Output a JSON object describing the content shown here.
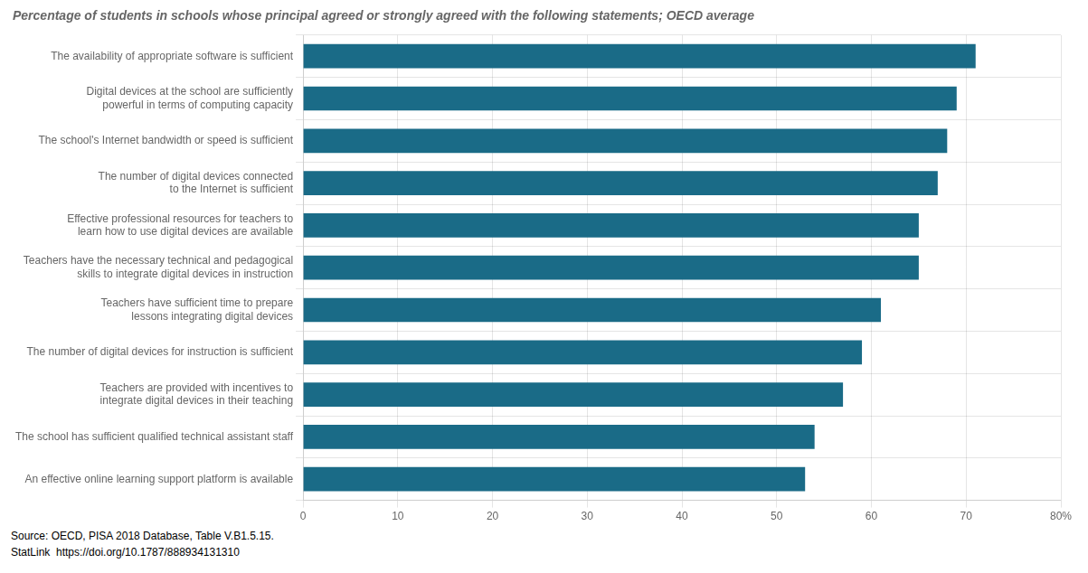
{
  "chart_data": {
    "type": "bar",
    "orientation": "horizontal",
    "title": "Percentage of students in schools whose principal agreed or strongly agreed with the following statements; OECD average",
    "categories": [
      "An effective online learning support platform is available",
      "The school has sufficient qualified technical assistant staff",
      "Teachers are provided with incentives to\nintegrate digital devices in their teaching",
      "The number of digital devices for instruction is sufficient",
      "Teachers have sufficient time to prepare\nlessons integrating digital devices",
      "Teachers have the necessary technical and pedagogical\nskills to integrate digital devices in instruction",
      "Effective professional resources for teachers to\nlearn how to use digital devices are available",
      "The number of digital devices connected\nto the Internet is sufficient",
      "The school's Internet bandwidth or speed is sufficient",
      "Digital devices at the school are sufficiently\npowerful in terms of computing capacity",
      "The availability of appropriate software is sufficient"
    ],
    "values": [
      53,
      54,
      57,
      59,
      61,
      65,
      65,
      67,
      68,
      69,
      71
    ],
    "color": "#1a6b87",
    "xlim": [
      0,
      80
    ],
    "xticks": [
      0,
      10,
      20,
      30,
      40,
      50,
      60,
      70,
      {
        "value": 80,
        "label": "80%"
      }
    ],
    "grid": true,
    "annotations": [
      "Source: OECD, PISA 2018 Database, Table V.B1.5.15.",
      "StatLink  https://doi.org/10.1787/888934131310"
    ]
  }
}
